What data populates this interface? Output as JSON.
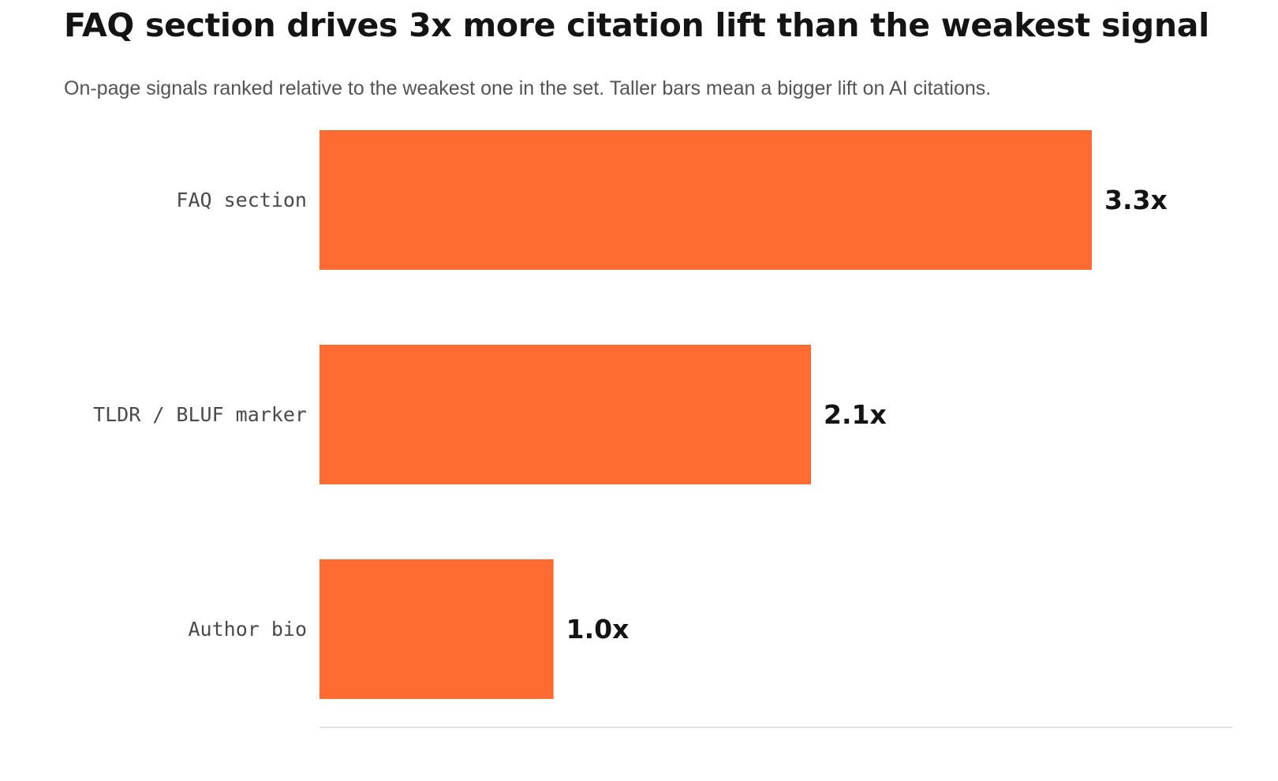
{
  "chart_data": {
    "type": "bar",
    "orientation": "horizontal",
    "title": "FAQ section drives 3x more citation lift than the weakest signal",
    "subtitle": "On-page signals ranked relative to the weakest one in the set. Taller bars mean a bigger lift on AI citations.",
    "categories": [
      "FAQ section",
      "TLDR / BLUF marker",
      "Author bio"
    ],
    "values": [
      3.3,
      2.1,
      1.0
    ],
    "value_labels": [
      "3.3x",
      "2.1x",
      "1.0x"
    ],
    "xlabel": "",
    "ylabel": "",
    "xlim": [
      0,
      3.9
    ],
    "grid": false,
    "legend": "none",
    "colors": {
      "bar": "#FF6B30",
      "baseline": "#e3e3e3"
    }
  }
}
